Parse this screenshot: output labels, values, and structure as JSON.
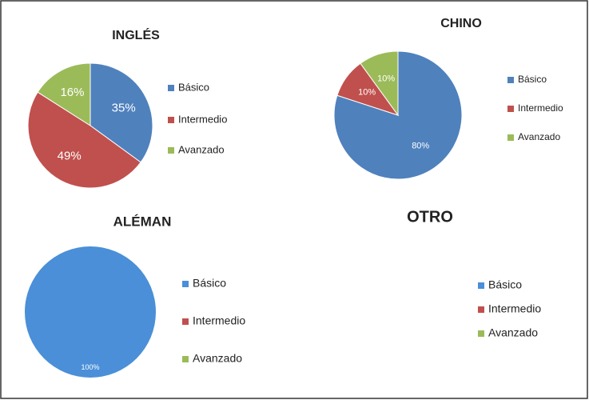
{
  "chart_data": [
    {
      "type": "pie",
      "title": "INGLÉS",
      "categories": [
        "Básico",
        "Intermedio",
        "Avanzado"
      ],
      "values": [
        35,
        49,
        16
      ],
      "value_labels": [
        "35%",
        "49%",
        "16%"
      ],
      "colors": [
        "#4f81bd",
        "#c0504d",
        "#9bbb59"
      ]
    },
    {
      "type": "pie",
      "title": "CHINO",
      "categories": [
        "Básico",
        "Intermedio",
        "Avanzado"
      ],
      "values": [
        80,
        10,
        10
      ],
      "value_labels": [
        "80%",
        "10%",
        "10%"
      ],
      "colors": [
        "#4f81bd",
        "#c0504d",
        "#9bbb59"
      ]
    },
    {
      "type": "pie",
      "title": "ALÉMAN",
      "categories": [
        "Básico",
        "Intermedio",
        "Avanzado"
      ],
      "values": [
        100,
        null,
        null
      ],
      "value_labels": [
        "100%",
        null,
        null
      ],
      "colors": [
        "#4a8fd8",
        "#c0504d",
        "#9bbb59"
      ]
    },
    {
      "type": "pie",
      "title": "OTRO",
      "categories": [
        "Básico",
        "Intermedio",
        "Avanzado"
      ],
      "values": [
        null,
        null,
        null
      ],
      "colors": [
        "#4a8fd8",
        "#c0504d",
        "#9bbb59"
      ]
    }
  ]
}
